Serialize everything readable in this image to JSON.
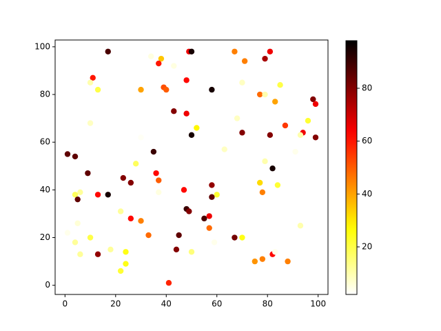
{
  "chart_data": {
    "type": "scatter",
    "x": [
      17,
      49,
      50,
      67,
      81,
      38,
      34,
      43,
      37,
      71,
      79,
      11,
      48,
      10,
      13,
      30,
      39,
      40,
      58,
      70,
      77,
      79,
      83,
      85,
      98,
      99,
      43,
      48,
      10,
      68,
      96,
      87,
      52,
      70,
      94,
      93,
      81,
      50,
      99,
      30,
      1,
      4,
      35,
      63,
      91,
      79,
      28,
      82,
      9,
      36,
      23,
      26,
      37,
      77,
      84,
      58,
      47,
      78,
      37,
      6,
      4,
      13,
      17,
      60,
      58,
      5,
      48,
      49,
      22,
      57,
      55,
      26,
      30,
      5,
      93,
      57,
      33,
      45,
      67,
      70,
      1,
      10,
      4,
      59,
      44,
      18,
      50,
      24,
      6,
      13,
      82,
      83,
      78,
      75,
      88,
      24,
      22,
      41
    ],
    "values": [
      98,
      98,
      98,
      98,
      98,
      95,
      96,
      92,
      93,
      94,
      95,
      87,
      86,
      85,
      82,
      82,
      83,
      82,
      82,
      85,
      80,
      80,
      77,
      84,
      78,
      76,
      73,
      72,
      68,
      70,
      69,
      67,
      66,
      64,
      64,
      63,
      63,
      63,
      62,
      62,
      55,
      54,
      56,
      57,
      56,
      52,
      51,
      49,
      47,
      47,
      45,
      43,
      44,
      43,
      42,
      42,
      40,
      39,
      39,
      39,
      38,
      38,
      38,
      38,
      37,
      36,
      32,
      31,
      31,
      29,
      28,
      28,
      27,
      26,
      25,
      24,
      21,
      21,
      20,
      20,
      22,
      20,
      18,
      18,
      15,
      15,
      14,
      14,
      13,
      13,
      13,
      14,
      11,
      10,
      10,
      9,
      6,
      1
    ],
    "c": [
      88,
      65,
      95,
      45,
      65,
      35,
      5,
      5,
      60,
      45,
      75,
      60,
      62,
      10,
      20,
      40,
      52,
      50,
      95,
      8,
      48,
      10,
      40,
      20,
      80,
      65,
      80,
      65,
      8,
      8,
      22,
      55,
      28,
      80,
      65,
      10,
      80,
      95,
      80,
      3,
      85,
      85,
      90,
      8,
      4,
      10,
      18,
      95,
      85,
      62,
      80,
      80,
      50,
      32,
      22,
      78,
      62,
      45,
      5,
      12,
      18,
      62,
      95,
      22,
      85,
      85,
      90,
      80,
      12,
      65,
      88,
      62,
      45,
      6,
      10,
      48,
      48,
      85,
      82,
      25,
      4,
      20,
      12,
      4,
      80,
      12,
      15,
      25,
      12,
      78,
      62,
      4,
      45,
      42,
      45,
      25,
      22,
      58
    ],
    "colormap": "hot_r",
    "xlim": [
      -3.9,
      103.9
    ],
    "ylim": [
      -3.85,
      102.85
    ],
    "xticks": [
      0,
      20,
      40,
      60,
      80,
      100
    ],
    "yticks": [
      0,
      20,
      40,
      60,
      80,
      100
    ],
    "clim": [
      2,
      98
    ],
    "colorbar_ticks": [
      20,
      40,
      60,
      80
    ]
  }
}
